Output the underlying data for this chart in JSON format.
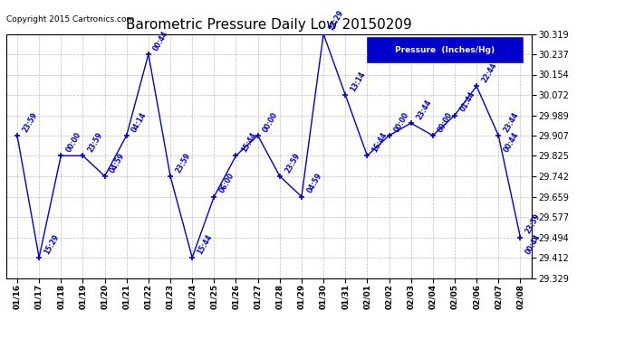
{
  "title": "Barometric Pressure Daily Low 20150209",
  "copyright": "Copyright 2015 Cartronics.com",
  "legend_label": "Pressure  (Inches/Hg)",
  "x_labels": [
    "01/16",
    "01/17",
    "01/18",
    "01/19",
    "01/20",
    "01/21",
    "01/22",
    "01/23",
    "01/24",
    "01/25",
    "01/26",
    "01/27",
    "01/28",
    "01/29",
    "01/30",
    "01/31",
    "02/01",
    "02/02",
    "02/03",
    "02/04",
    "02/05",
    "02/06",
    "02/07",
    "02/08"
  ],
  "y_values": [
    29.907,
    29.412,
    29.825,
    29.825,
    29.742,
    29.907,
    30.237,
    29.742,
    29.412,
    29.659,
    29.825,
    29.907,
    29.742,
    29.659,
    30.319,
    30.072,
    29.825,
    29.907,
    29.957,
    29.907,
    29.989,
    30.107,
    29.907,
    29.494
  ],
  "point_labels": [
    "23:59",
    "15:29",
    "00:00",
    "23:59",
    "04:59",
    "04:14",
    "00:44",
    "23:59",
    "15:44",
    "06:00",
    "15:44",
    "00:00",
    "23:59",
    "04:59",
    "23:29",
    "13:14",
    "16:44",
    "00:00",
    "23:44",
    "00:00",
    "01:44",
    "22:44",
    "23:44",
    "23:59"
  ],
  "point_labels2": [
    null,
    null,
    null,
    null,
    null,
    null,
    null,
    null,
    null,
    null,
    null,
    null,
    null,
    null,
    null,
    null,
    null,
    null,
    null,
    null,
    null,
    null,
    "00:44",
    "00:44"
  ],
  "ylim_min": 29.329,
  "ylim_max": 30.319,
  "yticks": [
    29.329,
    29.412,
    29.494,
    29.577,
    29.659,
    29.742,
    29.825,
    29.907,
    29.989,
    30.072,
    30.154,
    30.237,
    30.319
  ],
  "line_color": "#0000cc",
  "bg_color": "#ffffff",
  "grid_color": "#bbbbbb",
  "title_color": "#000000",
  "label_color": "#0000cc",
  "legend_bg": "#0000cc",
  "legend_fg": "#ffffff"
}
